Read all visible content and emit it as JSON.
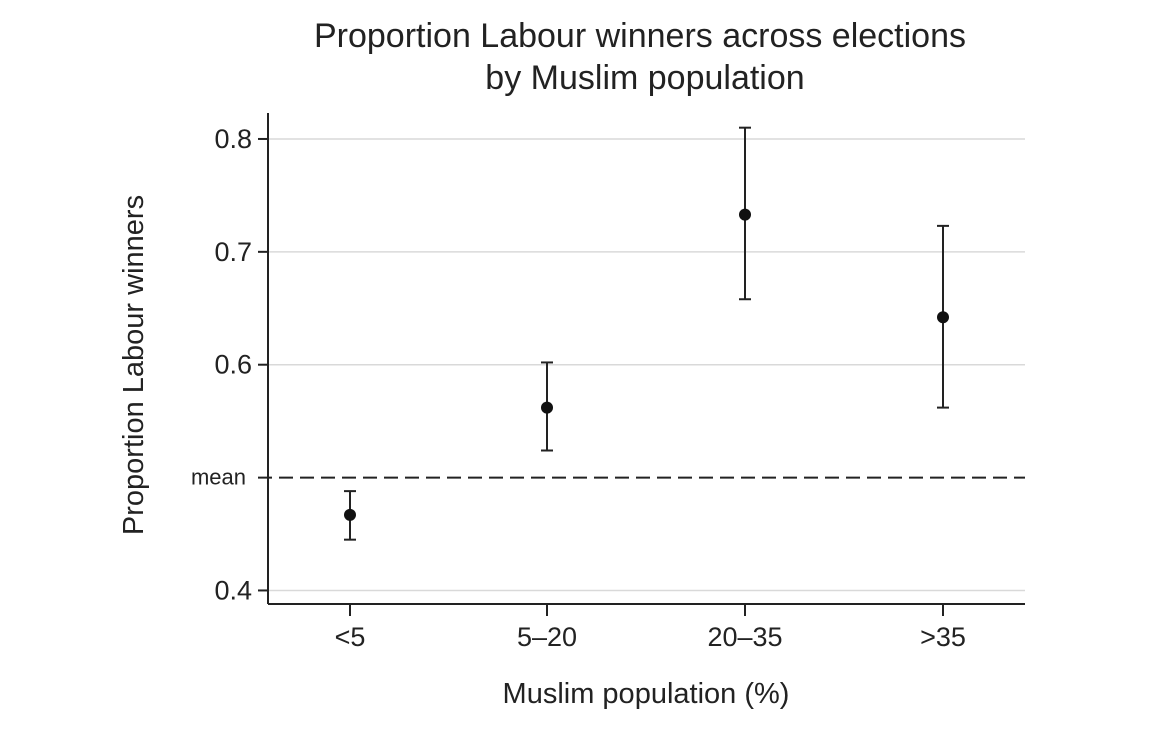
{
  "chart_data": {
    "type": "scatter",
    "title": "Proportion Labour winners across elections",
    "subtitle": "by Muslim population",
    "xlabel": "Muslim population (%)",
    "ylabel": "Proportion Labour winners",
    "categories": [
      "<5",
      "5–20",
      "20–35",
      ">35"
    ],
    "points": [
      {
        "category": "<5",
        "value": 0.467,
        "lower": 0.445,
        "upper": 0.488
      },
      {
        "category": "5–20",
        "value": 0.562,
        "lower": 0.524,
        "upper": 0.602
      },
      {
        "category": "20–35",
        "value": 0.733,
        "lower": 0.658,
        "upper": 0.81
      },
      {
        "category": ">35",
        "value": 0.642,
        "lower": 0.562,
        "upper": 0.723
      }
    ],
    "mean": {
      "label": "mean",
      "value": 0.5
    },
    "yticks": [
      {
        "value": 0.4,
        "label": "0.4"
      },
      {
        "value": 0.6,
        "label": "0.6"
      },
      {
        "value": 0.7,
        "label": "0.7"
      },
      {
        "value": 0.8,
        "label": "0.8"
      }
    ],
    "ylim": [
      0.388,
      0.823
    ],
    "grid": true,
    "colors": {
      "marker": "#111111",
      "grid": "#d9d9d9",
      "axis": "#222222"
    }
  }
}
